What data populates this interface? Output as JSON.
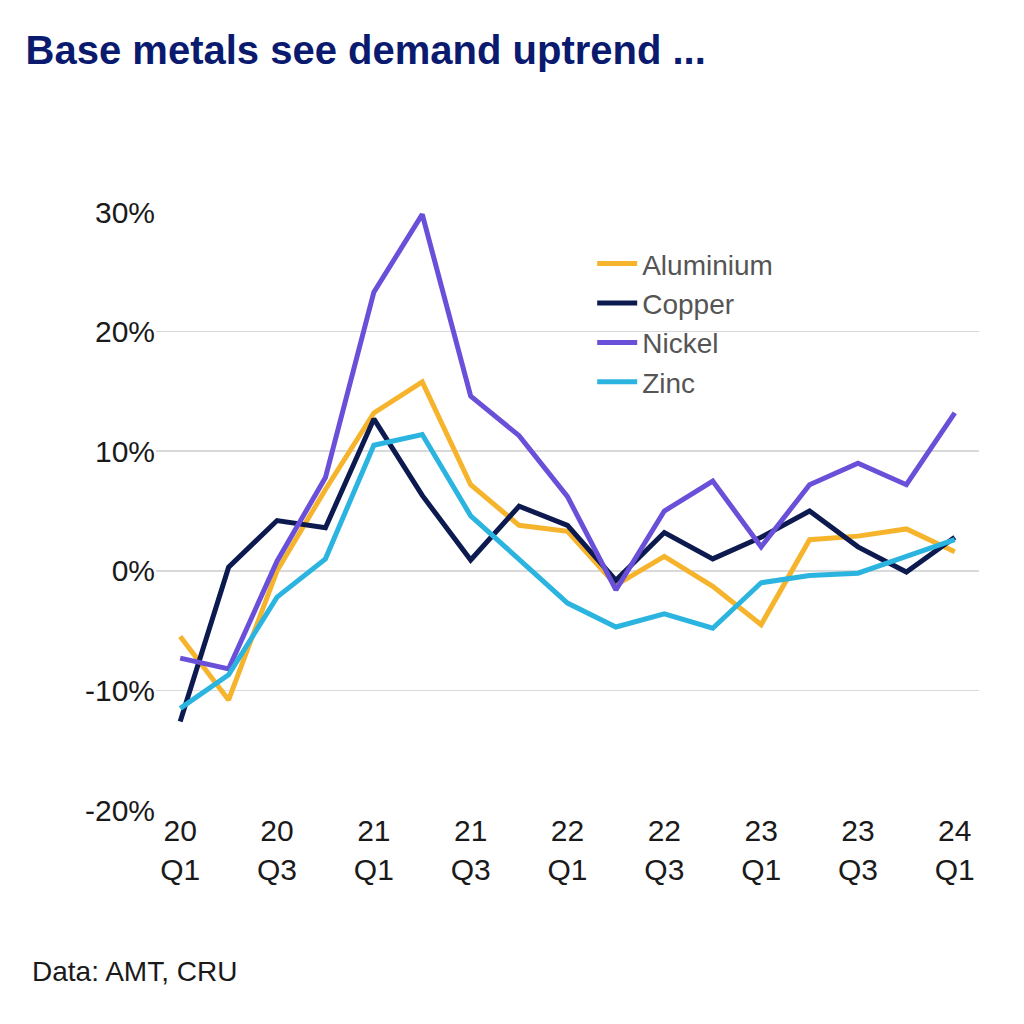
{
  "chart_data": {
    "type": "line",
    "title": "Base metals see demand uptrend ...",
    "annotations": [
      "Data: AMT, CRU"
    ],
    "categories": [
      "20\nQ1",
      null,
      "20\nQ3",
      null,
      "21\nQ1",
      null,
      "21\nQ3",
      null,
      "22\nQ1",
      null,
      "22\nQ3",
      null,
      "23\nQ1",
      null,
      "23\nQ3",
      null,
      "24\nQ1"
    ],
    "series": [
      {
        "name": "Aluminium",
        "color": "#f6b42d",
        "values": [
          -5.5,
          -10.8,
          0.0,
          6.8,
          13.2,
          15.8,
          7.2,
          3.8,
          3.3,
          -1.2,
          1.2,
          -1.3,
          -4.5,
          2.6,
          2.9,
          3.5,
          1.6
        ]
      },
      {
        "name": "Copper",
        "color": "#0d1a4f",
        "values": [
          -12.6,
          0.3,
          4.2,
          3.6,
          12.7,
          6.3,
          0.9,
          5.4,
          3.8,
          -0.8,
          3.2,
          1.0,
          2.8,
          5.0,
          2.0,
          -0.1,
          2.8
        ]
      },
      {
        "name": "Nickel",
        "color": "#6a50d8",
        "values": [
          -7.3,
          -8.2,
          0.8,
          7.8,
          23.3,
          29.8,
          14.6,
          11.3,
          6.2,
          -1.6,
          5.0,
          7.5,
          2.0,
          7.2,
          9.0,
          7.2,
          13.2
        ]
      },
      {
        "name": "Zinc",
        "color": "#2cb4e0",
        "values": [
          -11.5,
          -8.7,
          -2.2,
          1.0,
          10.5,
          11.4,
          4.6,
          1.0,
          -2.7,
          -4.7,
          -3.6,
          -4.8,
          -1.0,
          -0.4,
          -0.2,
          1.2,
          2.6
        ]
      }
    ],
    "ylim": [
      -20,
      30
    ],
    "yticks": [
      {
        "value": -20,
        "label": "-20%"
      },
      {
        "value": -10,
        "label": "-10%"
      },
      {
        "value": 0,
        "label": "0%"
      },
      {
        "value": 10,
        "label": "10%"
      },
      {
        "value": 20,
        "label": "20%"
      },
      {
        "value": 30,
        "label": "30%"
      }
    ],
    "grid": true,
    "legend": "top right"
  }
}
